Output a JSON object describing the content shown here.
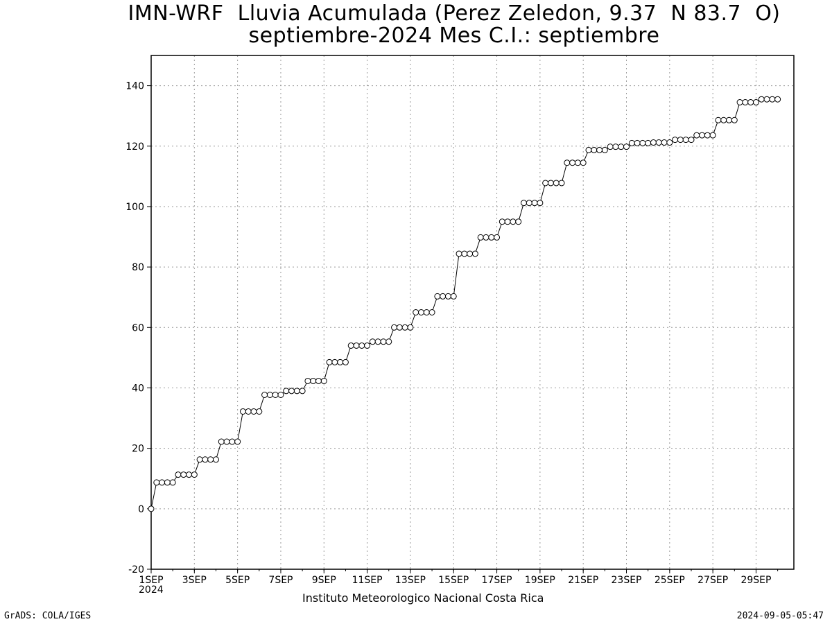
{
  "chart_data": {
    "type": "line",
    "title": "IMN-WRF  Lluvia Acumulada (Perez Zeledon, 9.37  N 83.7  O)",
    "subtitle": "septiembre-2024 Mes C.I.: septiembre",
    "xlabel": "Instituto Meteorologico Nacional Costa Rica",
    "ylabel": "",
    "ylim": [
      -20,
      150
    ],
    "xlim": [
      1,
      30.75
    ],
    "yticks": [
      -20,
      0,
      20,
      40,
      60,
      80,
      100,
      120,
      140
    ],
    "xticks": [
      {
        "day": 1,
        "label": "1SEP"
      },
      {
        "day": 3,
        "label": "3SEP"
      },
      {
        "day": 5,
        "label": "5SEP"
      },
      {
        "day": 7,
        "label": "7SEP"
      },
      {
        "day": 9,
        "label": "9SEP"
      },
      {
        "day": 11,
        "label": "11SEP"
      },
      {
        "day": 13,
        "label": "13SEP"
      },
      {
        "day": 15,
        "label": "15SEP"
      },
      {
        "day": 17,
        "label": "17SEP"
      },
      {
        "day": 19,
        "label": "19SEP"
      },
      {
        "day": 21,
        "label": "21SEP"
      },
      {
        "day": 23,
        "label": "23SEP"
      },
      {
        "day": 25,
        "label": "25SEP"
      },
      {
        "day": 27,
        "label": "27SEP"
      },
      {
        "day": 29,
        "label": "29SEP"
      }
    ],
    "year_label": "2024",
    "grid": true,
    "interval_days": 0.25,
    "values": [
      0,
      8.7,
      8.7,
      8.7,
      8.7,
      11.3,
      11.3,
      11.3,
      11.3,
      16.3,
      16.3,
      16.3,
      16.3,
      22.2,
      22.2,
      22.2,
      22.2,
      32.2,
      32.2,
      32.2,
      32.2,
      37.7,
      37.7,
      37.7,
      37.7,
      39,
      39,
      39,
      39,
      42.3,
      42.3,
      42.3,
      42.3,
      48.5,
      48.5,
      48.5,
      48.5,
      54,
      54,
      54,
      54,
      55.3,
      55.3,
      55.3,
      55.3,
      60,
      60,
      60,
      60,
      65,
      65,
      65,
      65,
      70.3,
      70.3,
      70.3,
      70.3,
      84.4,
      84.4,
      84.4,
      84.4,
      89.8,
      89.8,
      89.8,
      89.8,
      95,
      95,
      95,
      95,
      101.2,
      101.2,
      101.2,
      101.2,
      107.8,
      107.8,
      107.8,
      107.8,
      114.5,
      114.5,
      114.5,
      114.5,
      118.7,
      118.7,
      118.7,
      118.7,
      119.8,
      119.8,
      119.8,
      119.8,
      121,
      121,
      121,
      121,
      121.2,
      121.2,
      121.2,
      121.2,
      122.1,
      122.1,
      122.1,
      122.1,
      123.6,
      123.6,
      123.6,
      123.6,
      128.6,
      128.6,
      128.6,
      128.6,
      134.5,
      134.5,
      134.5,
      134.5,
      135.5,
      135.5,
      135.5,
      135.5
    ]
  },
  "footer": {
    "credit": "GrADS: COLA/IGES",
    "timestamp": "2024-09-05-05:47"
  }
}
